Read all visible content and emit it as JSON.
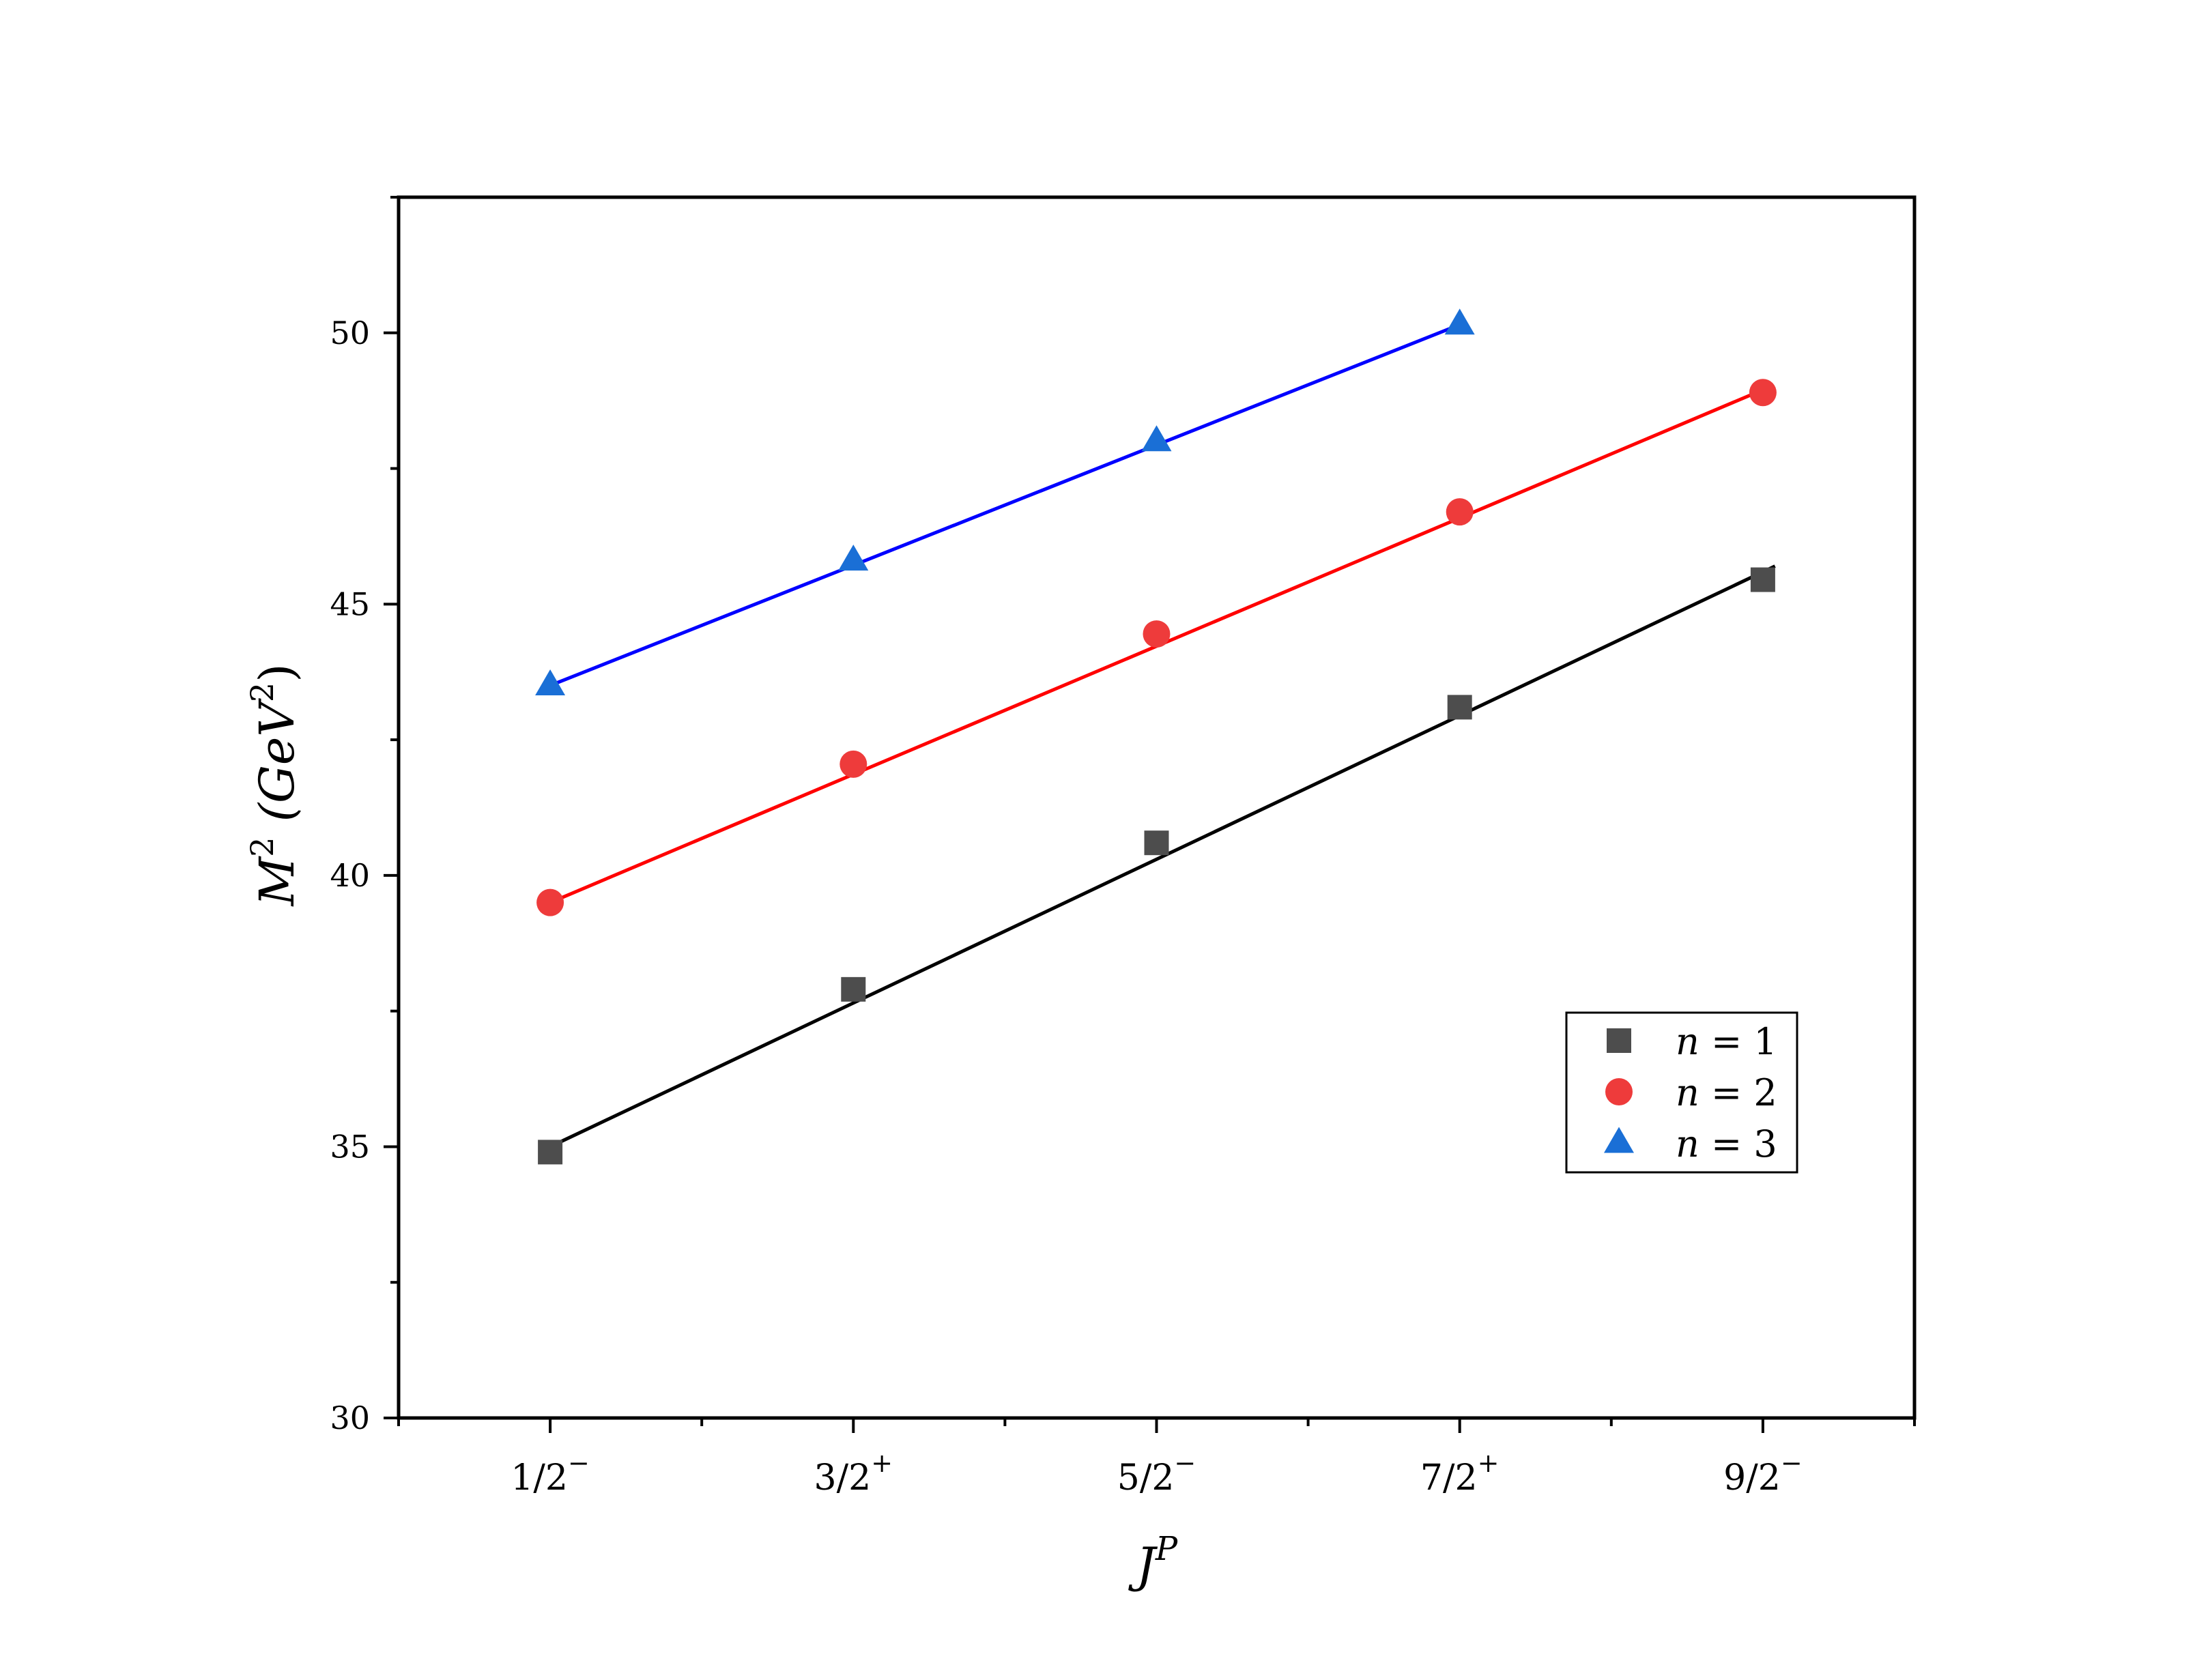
{
  "chart_data": {
    "type": "scatter",
    "title": "",
    "xlabel": {
      "base": "J",
      "sup": "P"
    },
    "ylabel": {
      "base": "M",
      "sup": "2",
      "unit_open": " (GeV",
      "unit_sup": "2",
      "unit_close": ")"
    },
    "categories": [
      {
        "num": "1/2",
        "parity": "−"
      },
      {
        "num": "3/2",
        "parity": "+"
      },
      {
        "num": "5/2",
        "parity": "−"
      },
      {
        "num": "7/2",
        "parity": "+"
      },
      {
        "num": "9/2",
        "parity": "−"
      }
    ],
    "x_range": [
      0.5,
      5.5
    ],
    "ylim": [
      30,
      52.5
    ],
    "y_ticks": [
      30,
      35,
      40,
      45,
      50
    ],
    "y_minor_ticks": [
      32.5,
      37.5,
      42.5,
      47.5,
      52.5
    ],
    "grid": false,
    "legend_position": "bottom-right",
    "series": [
      {
        "name": "n = 1",
        "marker": "square",
        "color": "#4d4d4d",
        "fit_color": "#000000",
        "x": [
          1,
          2,
          3,
          4,
          5
        ],
        "values": [
          34.9,
          37.9,
          40.6,
          43.1,
          45.45
        ],
        "fit": [
          [
            1,
            35.0
          ],
          [
            5.04,
            45.7
          ]
        ]
      },
      {
        "name": "n = 2",
        "marker": "circle",
        "color": "#ee3b3b",
        "fit_color": "#ff0000",
        "x": [
          1,
          2,
          3,
          4,
          5
        ],
        "values": [
          39.5,
          42.05,
          44.45,
          46.7,
          48.9
        ],
        "fit": [
          [
            1,
            39.5
          ],
          [
            5,
            48.95
          ]
        ]
      },
      {
        "name": "n = 3",
        "marker": "triangle",
        "color": "#1a6fd6",
        "fit_color": "#0000ff",
        "x": [
          1,
          2,
          3,
          4
        ],
        "values": [
          43.5,
          45.8,
          48.0,
          50.15
        ],
        "fit": [
          [
            1,
            43.5
          ],
          [
            4,
            50.15
          ]
        ]
      }
    ],
    "legend": [
      {
        "label": {
          "var": "n",
          "eq": " = 1"
        }
      },
      {
        "label": {
          "var": "n",
          "eq": " = 2"
        }
      },
      {
        "label": {
          "var": "n",
          "eq": " = 3"
        }
      }
    ]
  }
}
